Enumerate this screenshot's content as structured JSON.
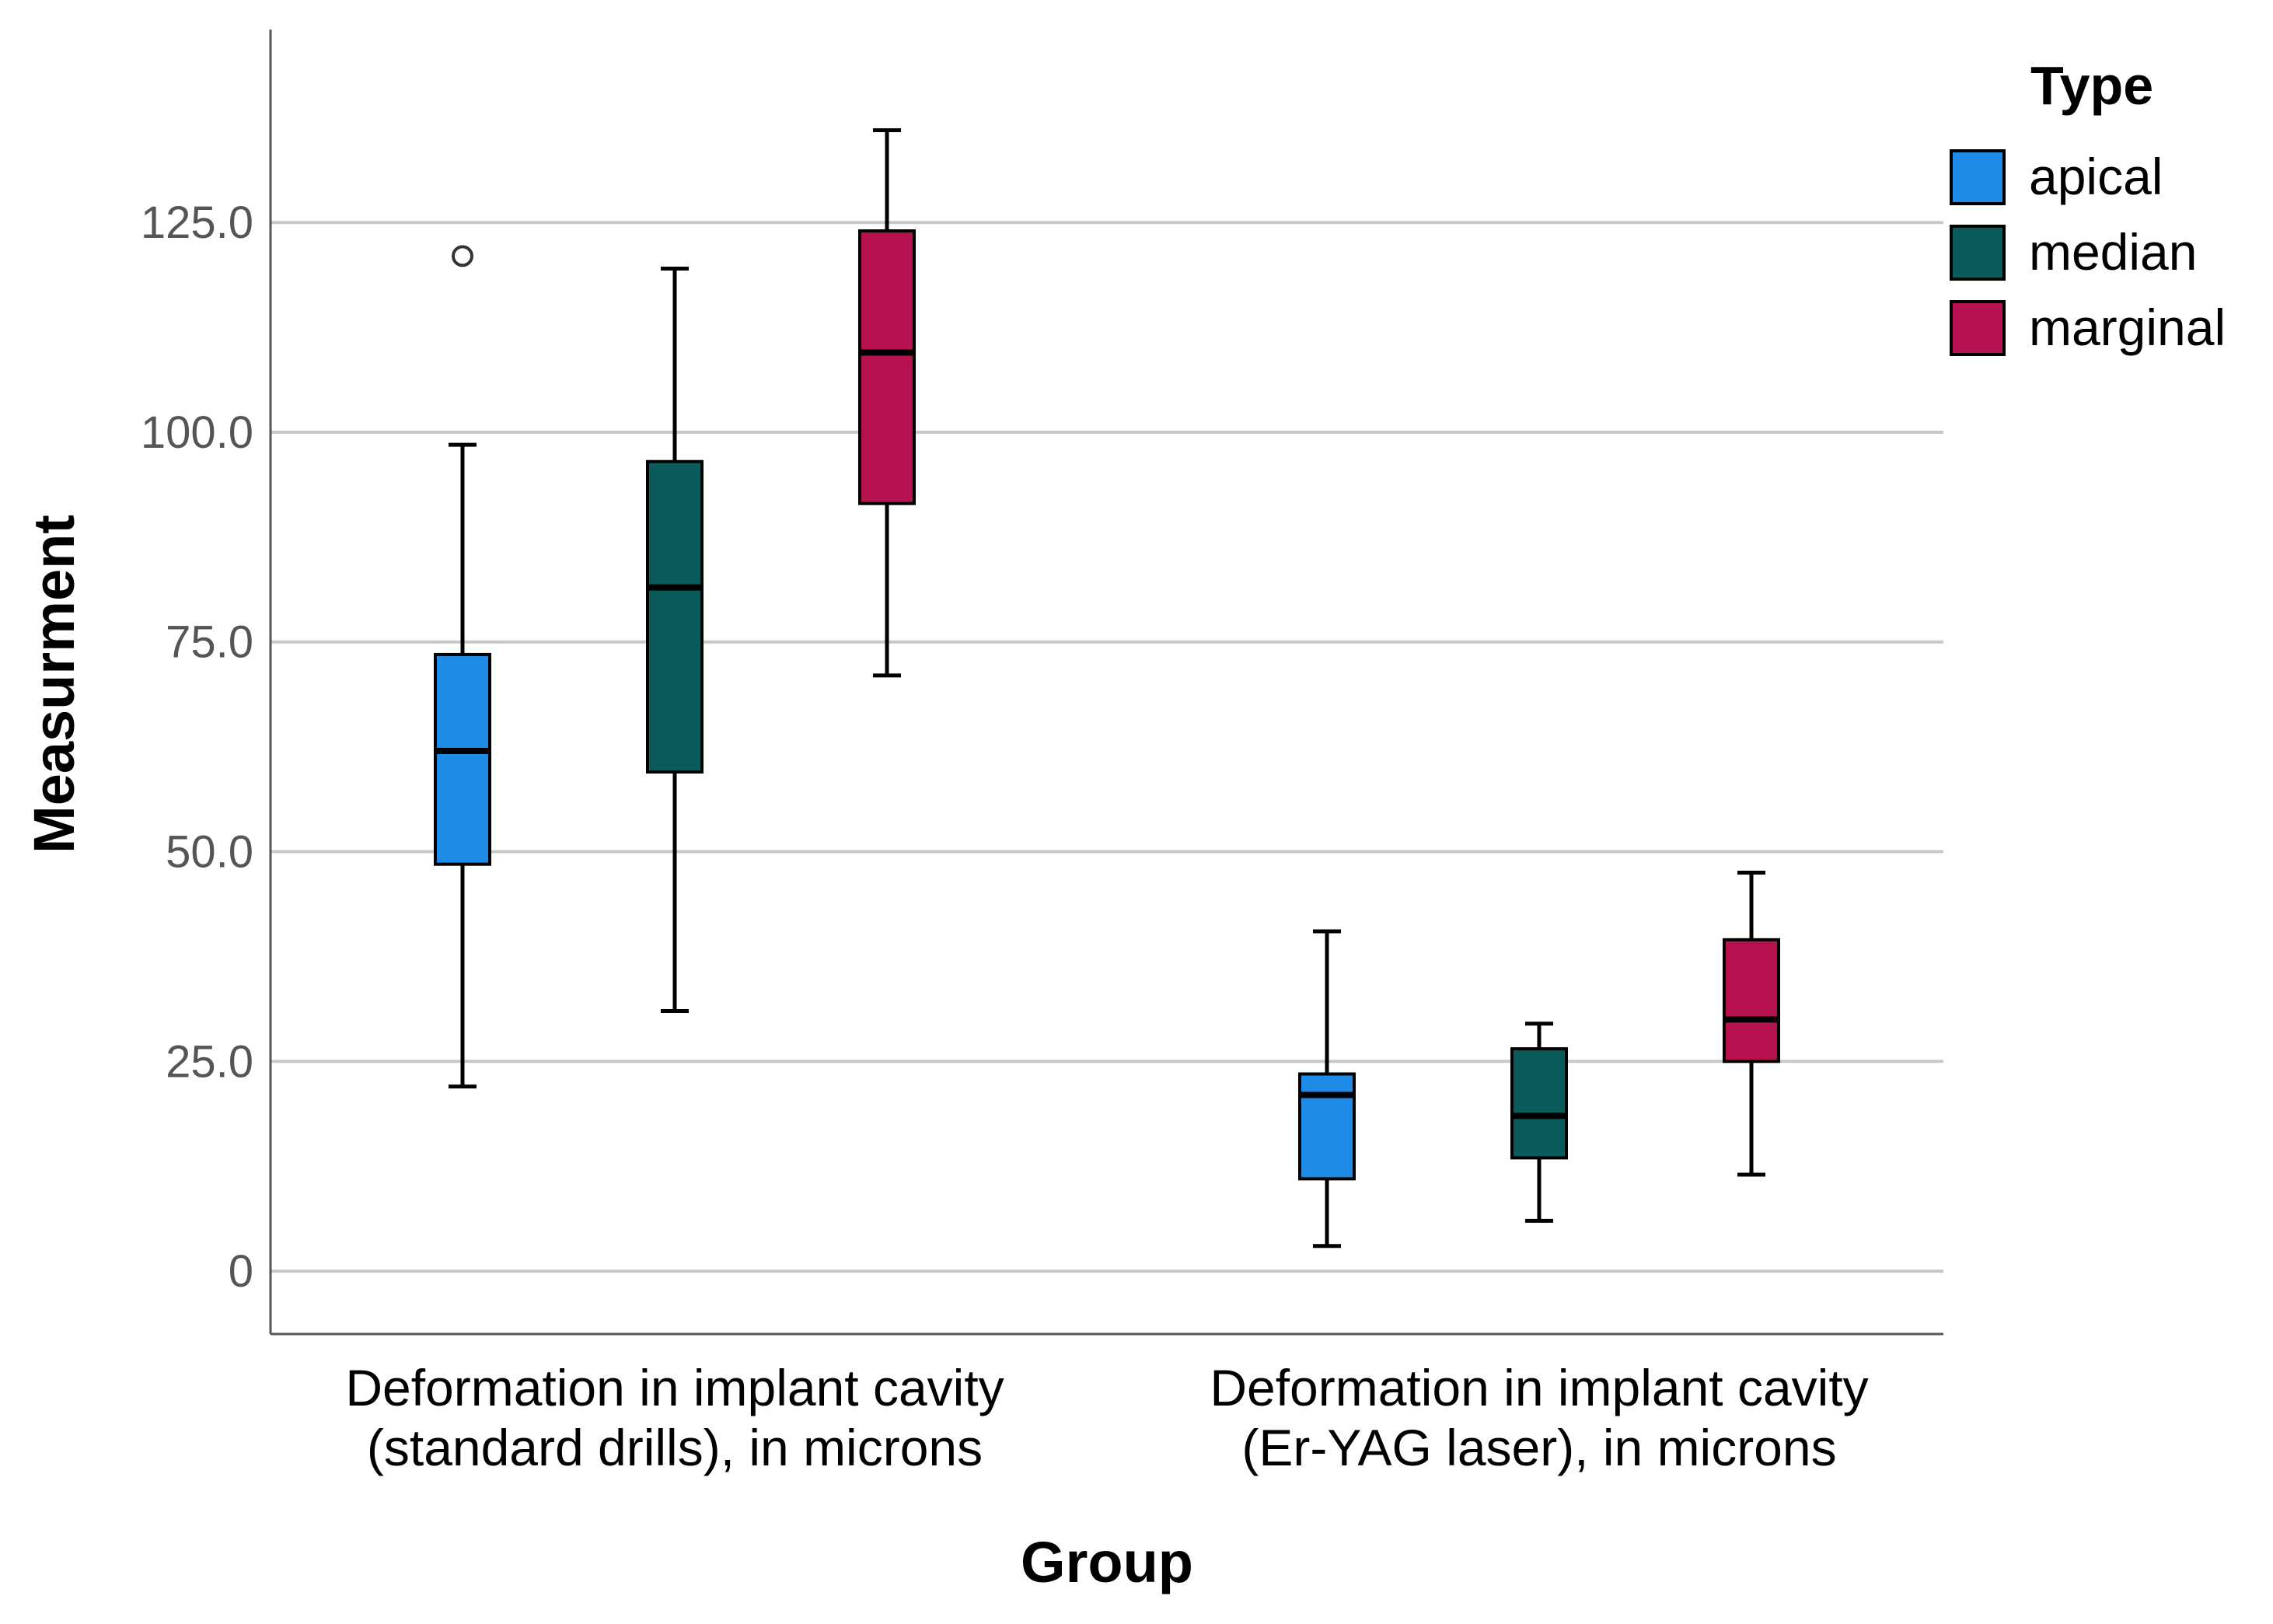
{
  "chart_data": {
    "type": "boxplot",
    "title": "",
    "xlabel": "Group",
    "ylabel": "Measurment",
    "ylim": [
      -7.5,
      148
    ],
    "yticks": [
      0,
      25,
      50,
      75,
      100,
      125
    ],
    "ytick_labels": [
      "0",
      "25.0",
      "50.0",
      "75.0",
      "100.0",
      "125.0"
    ],
    "grid": true,
    "legend": {
      "title": "Type",
      "position": "top-right",
      "entries": [
        {
          "name": "apical",
          "color": "#1E8CE6"
        },
        {
          "name": "median",
          "color": "#0C5B5B"
        },
        {
          "name": "marginal",
          "color": "#B5124F"
        }
      ]
    },
    "categories": [
      {
        "label_lines": [
          "Deformation in implant cavity",
          "(standard drills), in microns"
        ],
        "boxes": [
          {
            "series": "apical",
            "min": 22,
            "q1": 48.5,
            "median": 62,
            "q3": 73.5,
            "max": 98.5,
            "outliers": [
              121
            ]
          },
          {
            "series": "median",
            "min": 31,
            "q1": 59.5,
            "median": 81.5,
            "q3": 96.5,
            "max": 119.5,
            "outliers": []
          },
          {
            "series": "marginal",
            "min": 71,
            "q1": 91.5,
            "median": 109.5,
            "q3": 124,
            "max": 136,
            "outliers": []
          }
        ]
      },
      {
        "label_lines": [
          "Deformation in implant cavity",
          "(Er-YAG laser), in microns"
        ],
        "boxes": [
          {
            "series": "apical",
            "min": 3,
            "q1": 11,
            "median": 21,
            "q3": 23.5,
            "max": 40.5,
            "outliers": []
          },
          {
            "series": "median",
            "min": 6,
            "q1": 13.5,
            "median": 18.5,
            "q3": 26.5,
            "max": 29.5,
            "outliers": []
          },
          {
            "series": "marginal",
            "min": 11.5,
            "q1": 25,
            "median": 30,
            "q3": 39.5,
            "max": 47.5,
            "outliers": []
          }
        ]
      }
    ]
  }
}
